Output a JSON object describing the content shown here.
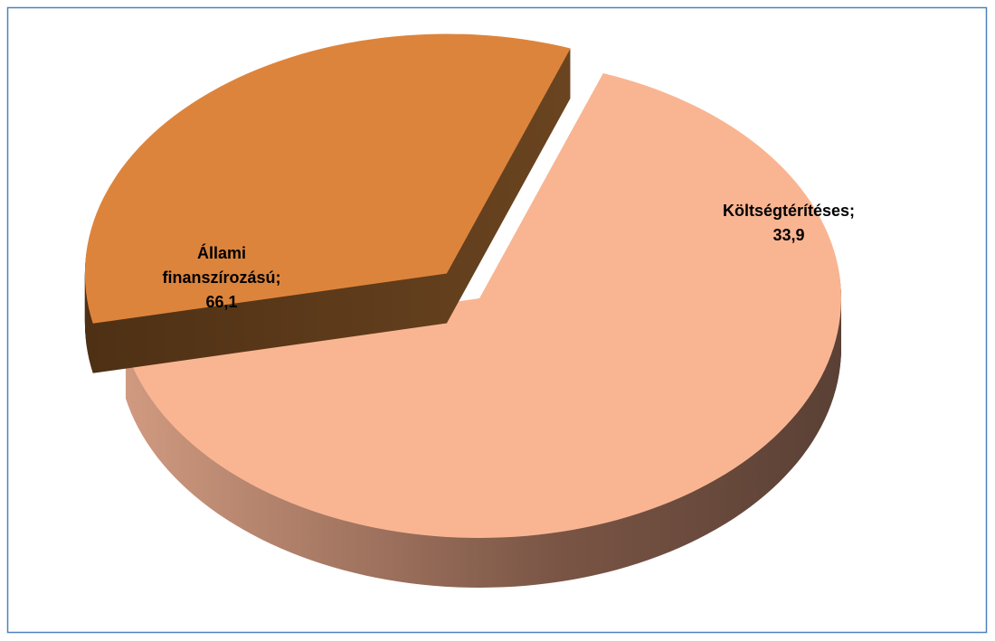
{
  "chart_data": {
    "type": "pie3d",
    "categories": [
      "Állami finanszírozású;",
      "Költségtérítéses;"
    ],
    "values": [
      66.1,
      33.9
    ],
    "value_labels": [
      "66,1",
      "33,9"
    ],
    "colors": [
      "#f9b592",
      "#dd843c"
    ],
    "exploded": [
      false,
      true
    ]
  }
}
